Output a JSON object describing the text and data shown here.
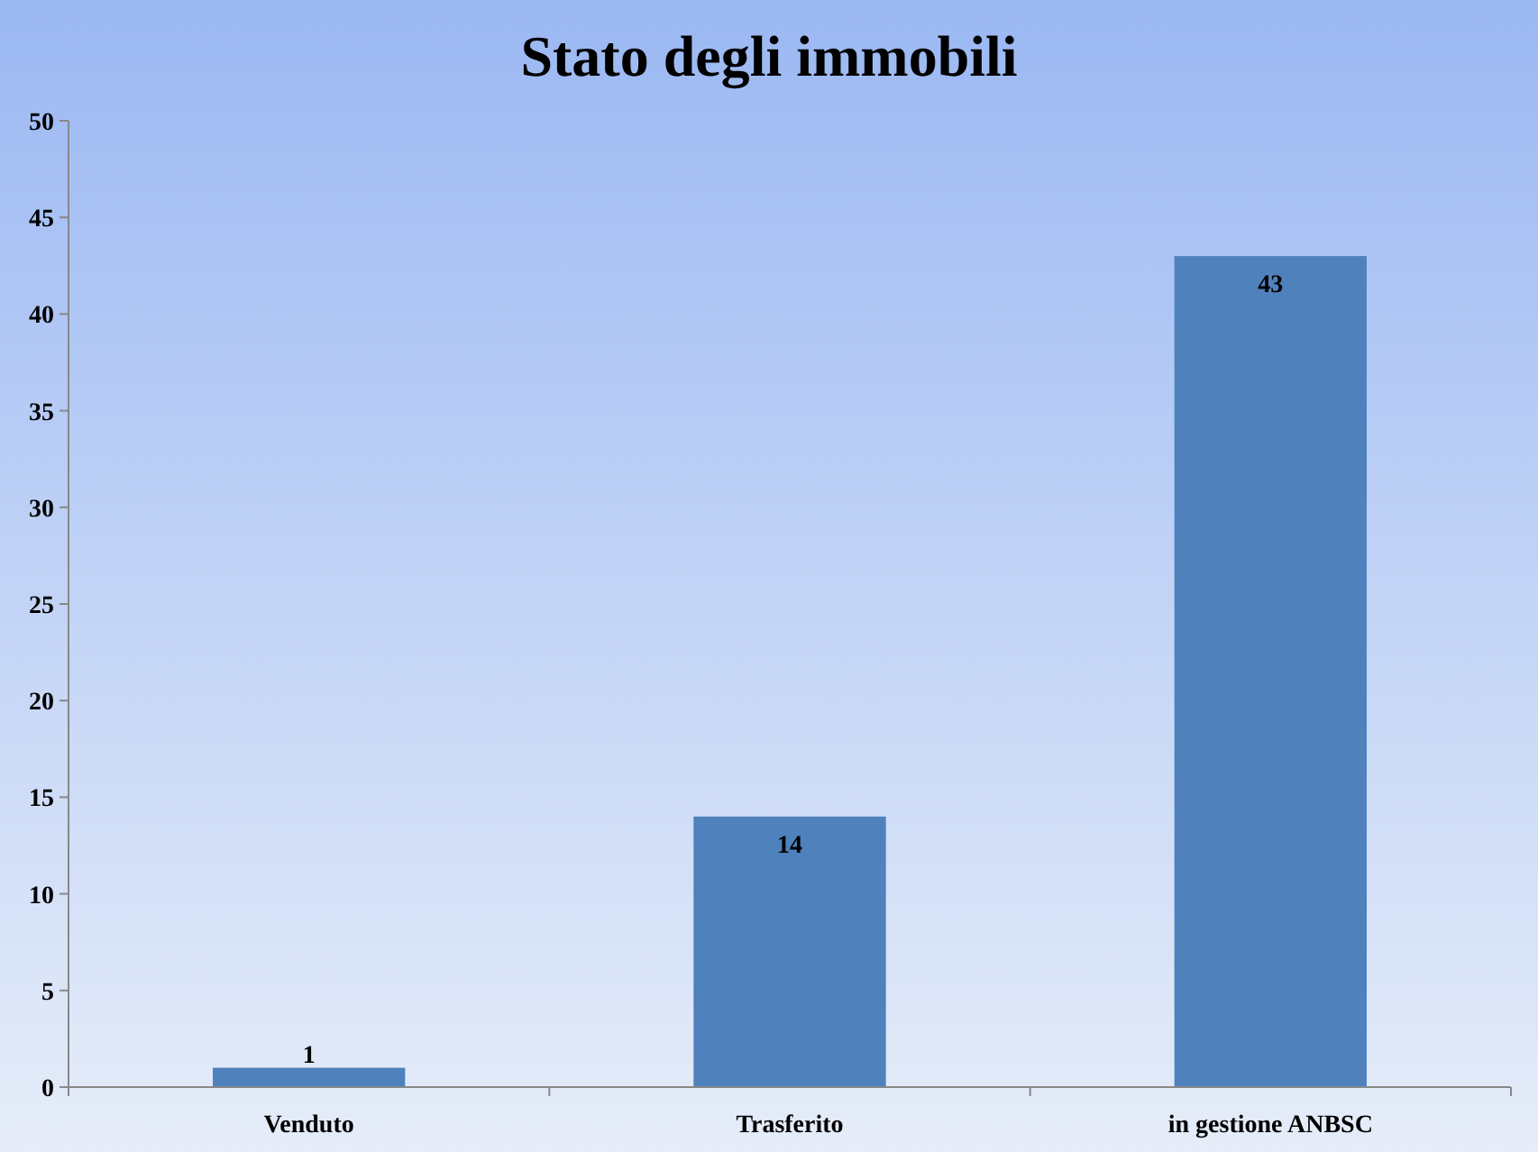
{
  "chart_data": {
    "type": "bar",
    "title": "Stato degli immobili",
    "categories": [
      "Venduto",
      "Trasferito",
      "in gestione ANBSC"
    ],
    "values": [
      1,
      14,
      43
    ],
    "color": "#4f81bd",
    "ylim": [
      0,
      50
    ],
    "yticks": [
      0,
      5,
      10,
      15,
      20,
      25,
      30,
      35,
      40,
      45,
      50
    ],
    "grid": false,
    "data_labels": true
  }
}
